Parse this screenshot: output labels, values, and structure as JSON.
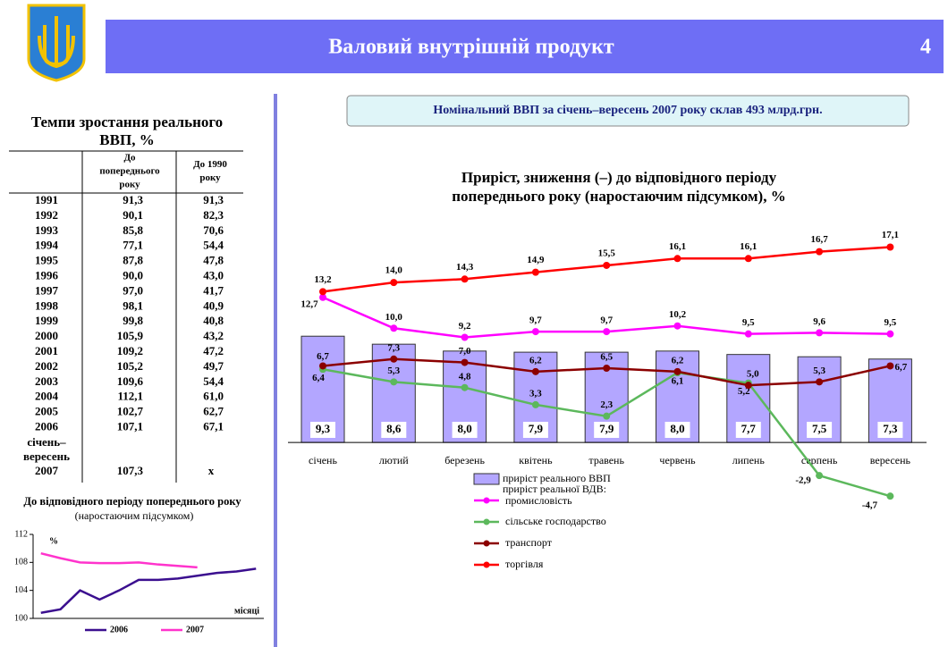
{
  "header": {
    "title": "Валовий внутрішній продукт",
    "page": "4"
  },
  "table": {
    "title": [
      "Темпи зростання реального",
      "ВВП, %"
    ],
    "columns": [
      "До попереднього року",
      "До 1990 року"
    ],
    "column_lines": [
      [
        "До",
        "попереднього",
        "року"
      ],
      [
        "До 1990",
        "року"
      ]
    ],
    "rows": [
      [
        "1991",
        "91,3",
        "91,3"
      ],
      [
        "1992",
        "90,1",
        "82,3"
      ],
      [
        "1993",
        "85,8",
        "70,6"
      ],
      [
        "1994",
        "77,1",
        "54,4"
      ],
      [
        "1995",
        "87,8",
        "47,8"
      ],
      [
        "1996",
        "90,0",
        "43,0"
      ],
      [
        "1997",
        "97,0",
        "41,7"
      ],
      [
        "1998",
        "98,1",
        "40,9"
      ],
      [
        "1999",
        "99,8",
        "40,8"
      ],
      [
        "2000",
        "105,9",
        "43,2"
      ],
      [
        "2001",
        "109,2",
        "47,2"
      ],
      [
        "2002",
        "105,2",
        "49,7"
      ],
      [
        "2003",
        "109,6",
        "54,4"
      ],
      [
        "2004",
        "112,1",
        "61,0"
      ],
      [
        "2005",
        "102,7",
        "62,7"
      ],
      [
        "2006",
        "107,1",
        "67,1"
      ]
    ],
    "last_row": {
      "label": [
        "січень–",
        "вересень",
        "2007"
      ],
      "values": [
        "107,3",
        "x"
      ]
    }
  },
  "banner": "Номінальний ВВП за січень–вересень 2007 року склав 493 млрд.грн.",
  "chart_data": [
    {
      "type": "bar",
      "title": [
        "Приріст, зниження (–) до відповідного періоду",
        "попереднього року (наростаючим підсумком), %"
      ],
      "categories": [
        "січень",
        "лютий",
        "березень",
        "квітень",
        "травень",
        "червень",
        "липень",
        "серпень",
        "вересень"
      ],
      "ylim": [
        -5,
        18
      ],
      "legend_heading": "приріст реальної ВДВ:",
      "series": [
        {
          "name": "приріст реального ВВП",
          "type": "bar",
          "color": "#b3a6ff",
          "values": [
            9.3,
            8.6,
            8.0,
            7.9,
            7.9,
            8.0,
            7.7,
            7.5,
            7.3
          ],
          "value_labels": [
            "9,3",
            "8,6",
            "8,0",
            "7,9",
            "7,9",
            "8,0",
            "7,7",
            "7,5",
            "7,3"
          ]
        },
        {
          "name": "промисловість",
          "type": "line",
          "color": "#ff00ff",
          "values": [
            12.7,
            10.0,
            9.2,
            9.7,
            9.7,
            10.2,
            9.5,
            9.6,
            9.5
          ],
          "value_labels": [
            "12,7",
            "10,0",
            "9,2",
            "9,7",
            "9,7",
            "10,2",
            "9,5",
            "9,6",
            "9,5"
          ]
        },
        {
          "name": "сільське господарство",
          "type": "line",
          "color": "#5cb85c",
          "values": [
            6.4,
            5.3,
            4.8,
            3.3,
            2.3,
            6.1,
            5.2,
            -2.9,
            -4.7
          ],
          "value_labels": [
            "6,4",
            "5,3",
            "4,8",
            "3,3",
            "2,3",
            "6,1",
            "5,2",
            "-2,9",
            "-4,7"
          ]
        },
        {
          "name": "транспорт",
          "type": "line",
          "color": "#8b0000",
          "values": [
            6.7,
            7.3,
            7.0,
            6.2,
            6.5,
            6.2,
            5.0,
            5.3,
            6.7
          ],
          "value_labels": [
            "6,7",
            "7,3",
            "7,0",
            "6,2",
            "6,5",
            "6,2",
            "5,0",
            "5,3",
            "6,7"
          ]
        },
        {
          "name": "торгівля",
          "type": "line",
          "color": "#ff0000",
          "values": [
            13.2,
            14.0,
            14.3,
            14.9,
            15.5,
            16.1,
            16.1,
            16.7,
            17.1
          ],
          "value_labels": [
            "13,2",
            "14,0",
            "14,3",
            "14,9",
            "15,5",
            "16,1",
            "16,1",
            "16,7",
            "17,1"
          ]
        }
      ]
    },
    {
      "type": "line",
      "title": "До відповідного періоду попереднього року",
      "subtitle": "(наростаючим підсумком)",
      "y_label": "%",
      "x_label": "місяці",
      "x": [
        1,
        2,
        3,
        4,
        5,
        6,
        7,
        8,
        9,
        10,
        11,
        12
      ],
      "xlim": [
        0.6,
        12.4
      ],
      "ylim": [
        100,
        112
      ],
      "yticks": [
        100,
        104,
        108,
        112
      ],
      "series": [
        {
          "name": "2006",
          "color": "#3b0f8f",
          "values": [
            100.8,
            101.3,
            104.0,
            102.7,
            104.0,
            105.5,
            105.5,
            105.7,
            106.1,
            106.5,
            106.7,
            107.1
          ]
        },
        {
          "name": "2007",
          "color": "#ff33cc",
          "values": [
            109.3,
            108.6,
            108.0,
            107.9,
            107.9,
            108.0,
            107.7,
            107.5,
            107.3,
            null,
            null,
            null
          ]
        }
      ]
    }
  ]
}
